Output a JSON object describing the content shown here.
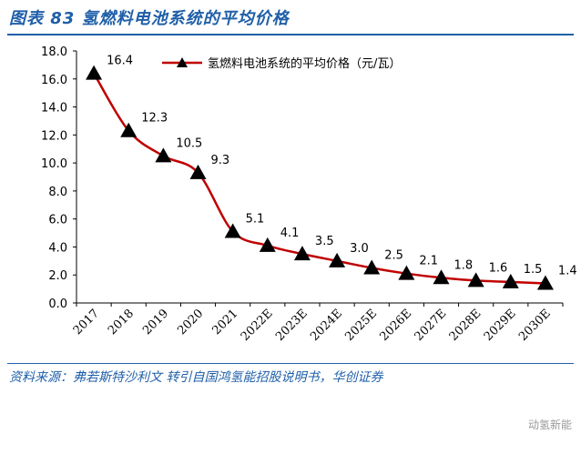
{
  "figure": {
    "title": "图表 83 氢燃料电池系统的平均价格",
    "source": "资料来源：弗若斯特沙利文 转引自国鸿氢能招股说明书，华创证券",
    "watermark": "动氢新能"
  },
  "chart_data": {
    "type": "line",
    "categories": [
      "2017",
      "2018",
      "2019",
      "2020",
      "2021",
      "2022E",
      "2023E",
      "2024E",
      "2025E",
      "2026E",
      "2027E",
      "2028E",
      "2029E",
      "2030E"
    ],
    "series": [
      {
        "name": "氢燃料电池系统的平均价格（元/瓦）",
        "values": [
          16.4,
          12.3,
          10.5,
          9.3,
          5.1,
          4.1,
          3.5,
          3.0,
          2.5,
          2.1,
          1.8,
          1.6,
          1.5,
          1.4
        ],
        "labels": [
          "16.4",
          "12.3",
          "10.5",
          "9.3",
          "5.1",
          "4.1",
          "3.5",
          "3.0",
          "2.5",
          "2.1",
          "1.8",
          "1.6",
          "1.5",
          "1.4"
        ],
        "color": "#c00000",
        "marker": "triangle"
      }
    ],
    "yticks": [
      "0.0",
      "2.0",
      "4.0",
      "6.0",
      "8.0",
      "10.0",
      "12.0",
      "14.0",
      "16.0",
      "18.0"
    ],
    "ylim": [
      0,
      18
    ],
    "legend_position": "top"
  }
}
